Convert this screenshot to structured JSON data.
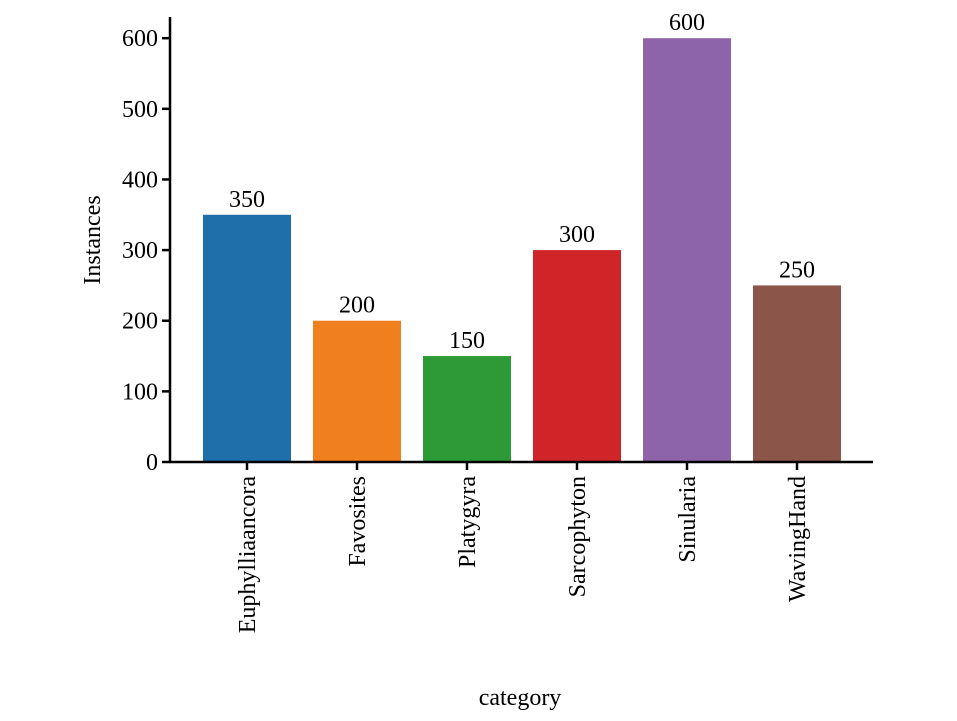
{
  "chart_data": {
    "type": "bar",
    "x_label": "category",
    "y_label": "Instances",
    "categories": [
      "Euphylliaancora",
      "Favosites",
      "Platygyra",
      "Sarcophyton",
      "Sinularia",
      "WavingHand"
    ],
    "values": [
      350,
      200,
      150,
      300,
      600,
      250
    ],
    "colors": [
      "#1f6fab",
      "#f07f1e",
      "#2e9a36",
      "#cf2528",
      "#8d64aa",
      "#8b5649"
    ],
    "ylim": [
      0,
      630
    ],
    "yticks": [
      0,
      100,
      200,
      300,
      400,
      500,
      600
    ]
  }
}
